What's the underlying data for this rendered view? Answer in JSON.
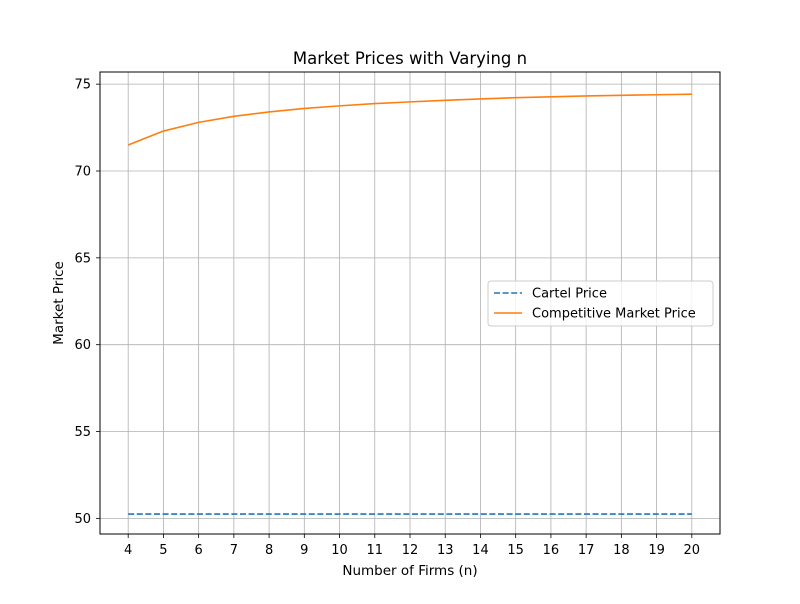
{
  "colors": {
    "cartel": "#1f77b4",
    "competitive": "#ff7f0e",
    "grid": "#b0b0b0",
    "axis": "#000000"
  },
  "chart_data": {
    "type": "line",
    "title": "Market Prices with Varying n",
    "xlabel": "Number of Firms (n)",
    "ylabel": "Market Price",
    "x": [
      4,
      5,
      6,
      7,
      8,
      9,
      10,
      11,
      12,
      13,
      14,
      15,
      16,
      17,
      18,
      19,
      20
    ],
    "xticks": [
      "4",
      "5",
      "6",
      "7",
      "8",
      "9",
      "10",
      "11",
      "12",
      "13",
      "14",
      "15",
      "16",
      "17",
      "18",
      "19",
      "20"
    ],
    "yticks": [
      50,
      55,
      60,
      65,
      70,
      75
    ],
    "ytick_labels": [
      "50",
      "55",
      "60",
      "65",
      "70",
      "75"
    ],
    "xlim": [
      3.2,
      20.8
    ],
    "ylim": [
      49.1,
      75.7
    ],
    "grid": true,
    "legend_position": "center-right",
    "series": [
      {
        "name": "Cartel Price",
        "style": "dashed",
        "color": "#1f77b4",
        "values": [
          50.25,
          50.25,
          50.25,
          50.25,
          50.25,
          50.25,
          50.25,
          50.25,
          50.25,
          50.25,
          50.25,
          50.25,
          50.25,
          50.25,
          50.25,
          50.25,
          50.25
        ]
      },
      {
        "name": "Competitive Market Price",
        "style": "solid",
        "color": "#ff7f0e",
        "values": [
          71.5,
          72.3,
          72.8,
          73.15,
          73.4,
          73.6,
          73.75,
          73.88,
          73.98,
          74.07,
          74.15,
          74.22,
          74.27,
          74.32,
          74.36,
          74.39,
          74.42
        ]
      }
    ]
  }
}
